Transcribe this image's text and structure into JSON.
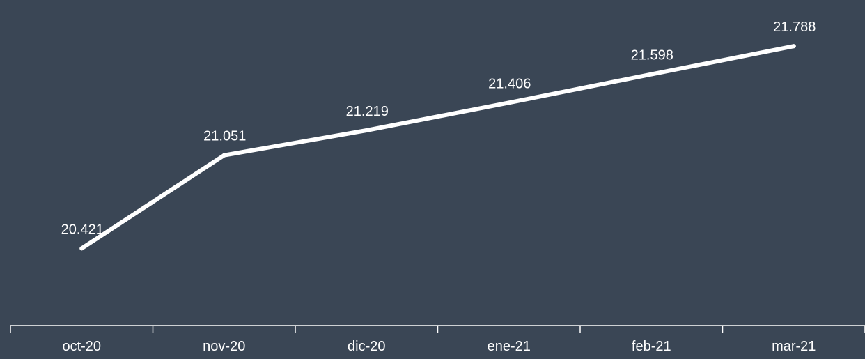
{
  "colors": {
    "background": "#3a4655",
    "line": "#ffffff",
    "axis": "#ffffff",
    "text": "#ffffff"
  },
  "chart_data": {
    "type": "line",
    "title": "",
    "xlabel": "",
    "ylabel": "",
    "categories": [
      "oct-20",
      "nov-20",
      "dic-20",
      "ene-21",
      "feb-21",
      "mar-21"
    ],
    "series": [
      {
        "values": [
          20.421,
          21.051,
          21.219,
          21.406,
          21.598,
          21.788
        ],
        "labels": [
          "20.421",
          "21.051",
          "21.219",
          "21.406",
          "21.598",
          "21.788"
        ]
      }
    ],
    "ylim": [
      19.9,
      22.1
    ],
    "grid": false,
    "legend": "none"
  }
}
